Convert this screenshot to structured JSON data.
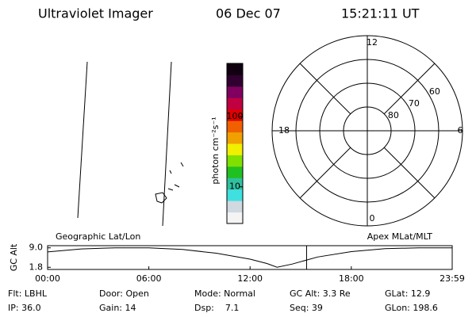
{
  "header": {
    "title": "Ultraviolet Imager",
    "date": "06 Dec 07",
    "time": "15:21:11 UT"
  },
  "chart_data": [
    {
      "type": "colorbar",
      "label": "photon cm⁻²s⁻¹",
      "log_scale": true,
      "ylim": [
        3,
        575
      ],
      "yticks": [
        10,
        100
      ],
      "colors": [
        "#f4f4f4",
        "#d0d8e0",
        "#40e0e0",
        "#30c0a0",
        "#20c020",
        "#80e000",
        "#f0f000",
        "#f0a000",
        "#f06000",
        "#e00000",
        "#c00040",
        "#800060",
        "#300030",
        "#100010"
      ]
    },
    {
      "type": "polar",
      "rlim": [
        90,
        50
      ],
      "rticks": [
        80,
        70,
        60
      ],
      "thetaticks": [
        12,
        18,
        6,
        0
      ]
    },
    {
      "type": "line",
      "ylabel": "GC Alt",
      "left_label": "Geographic Lat/Lon",
      "right_label": "Apex MLat/MLT",
      "x": [
        0,
        2,
        4,
        6,
        8,
        10,
        12,
        13,
        13.6,
        14.5,
        16,
        18,
        20,
        22,
        23.98
      ],
      "values": [
        7.5,
        8.6,
        9.0,
        9.0,
        8.4,
        7.0,
        4.8,
        3.2,
        1.8,
        3.0,
        5.6,
        7.6,
        8.7,
        9.0,
        9.0
      ],
      "color": "#000000",
      "marker_x": 15.35,
      "marker_color": "#e00000",
      "xlim": [
        0,
        23.98
      ],
      "ylim": [
        1.0,
        9.8
      ],
      "yticks": [
        {
          "value": 9.0,
          "label": "9.0"
        },
        {
          "value": 1.8,
          "label": "1.8"
        }
      ],
      "xticks": [
        {
          "value": 0,
          "label": "00:00"
        },
        {
          "value": 6,
          "label": "06:00"
        },
        {
          "value": 12,
          "label": "12:00"
        },
        {
          "value": 18,
          "label": "18:00"
        },
        {
          "value": 23.98,
          "label": "23:59"
        }
      ]
    }
  ],
  "footer": [
    [
      "Flt: LBHL",
      "Door: Open",
      "Mode: Normal",
      "GC Alt: 3.3 Re",
      "GLat: 12.9"
    ],
    [
      "IP: 36.0",
      "Gain: 14",
      "Dsp:    7.1",
      "Seq: 39",
      "GLon: 198.6"
    ]
  ]
}
